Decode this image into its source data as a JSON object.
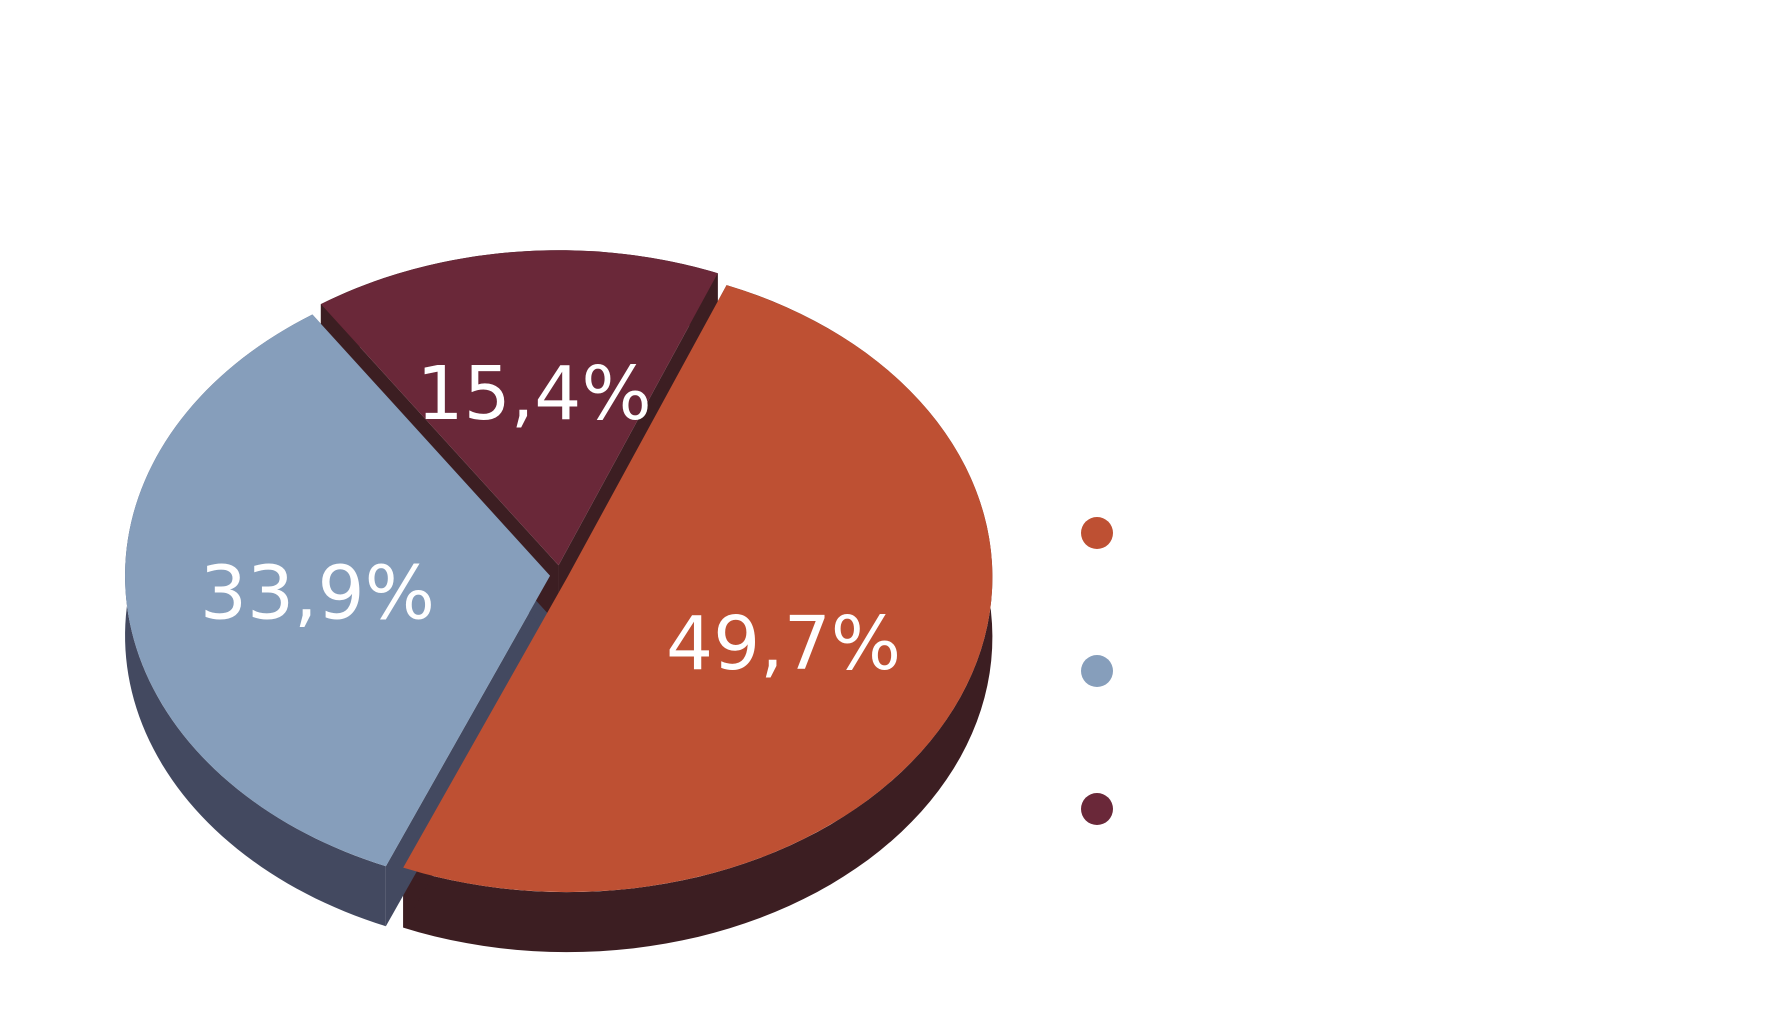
{
  "chart_data": {
    "type": "pie",
    "style": "3d-exploded",
    "values": [
      49.7,
      33.9,
      15.4
    ],
    "labels": [
      "49,7%",
      "33,9%",
      "15,4%"
    ],
    "colors": [
      "#BE5033",
      "#869EBB",
      "#6A2839"
    ],
    "side_colors": [
      "#3C1E22",
      "#434960",
      "#3C1E22"
    ],
    "legend": {
      "placement": "right",
      "entries": [
        {
          "color": "#BE5033",
          "text": ""
        },
        {
          "color": "#869EBB",
          "text": ""
        },
        {
          "color": "#6A2839",
          "text": ""
        }
      ]
    },
    "title": ""
  }
}
